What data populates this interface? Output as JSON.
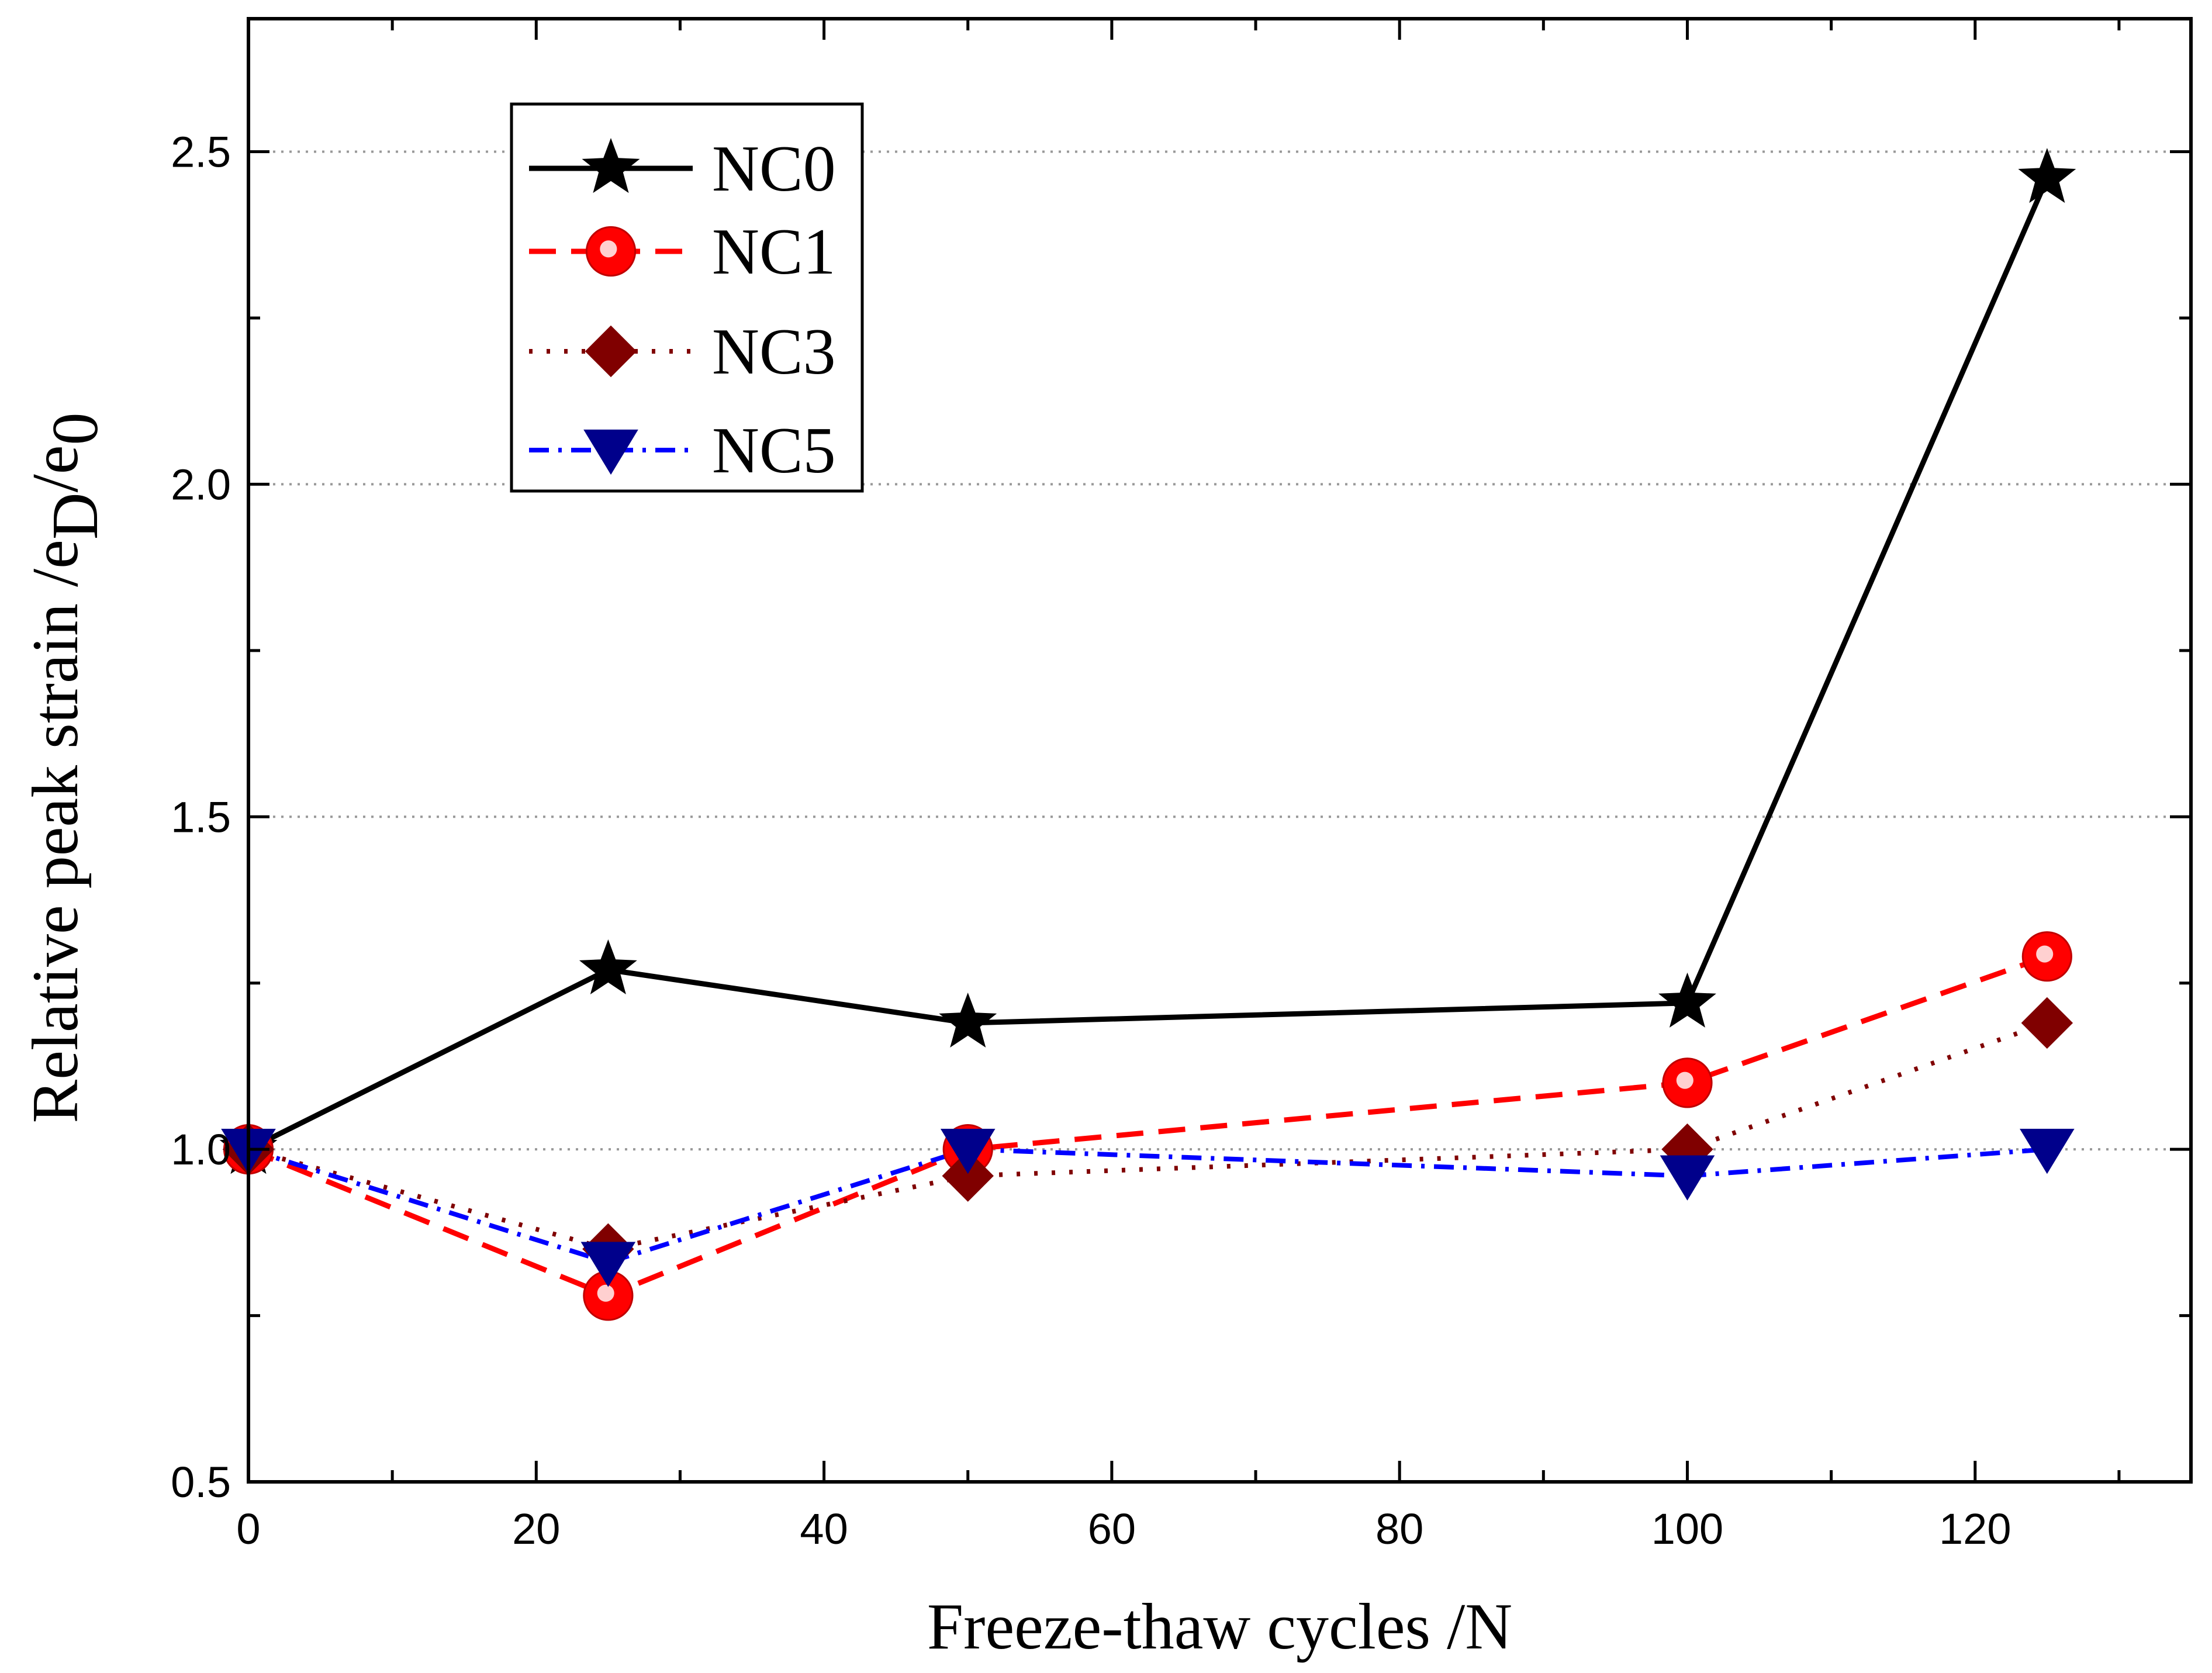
{
  "chart_data": {
    "type": "line",
    "title": "",
    "xlabel": "Freeze-thaw cycles /N",
    "ylabel": {
      "main": "Relative peak strain /e",
      "sub1": "D",
      "mid": "/e",
      "sub2": "0"
    },
    "xlim": [
      0,
      135
    ],
    "ylim": [
      0.5,
      2.7
    ],
    "x_major_ticks": [
      0,
      20,
      40,
      60,
      80,
      100,
      120
    ],
    "x_tick_labels": [
      "0",
      "20",
      "40",
      "60",
      "80",
      "100",
      "120"
    ],
    "x_minor_ticks": [
      10,
      30,
      50,
      70,
      90,
      110,
      130
    ],
    "y_major_ticks": [
      0.5,
      1.0,
      1.5,
      2.0,
      2.5
    ],
    "y_tick_labels": [
      "0.5",
      "1.0",
      "1.5",
      "2.0",
      "2.5"
    ],
    "y_minor_ticks": [
      0.75,
      1.25,
      1.75,
      2.25
    ],
    "grid": {
      "horizontal_dotted_at": [
        1.0,
        1.5,
        2.0,
        2.5
      ]
    },
    "legend_position": "upper-left",
    "x": [
      0,
      25,
      50,
      100,
      125
    ],
    "series": [
      {
        "name": "NC0",
        "values": [
          1.0,
          1.27,
          1.19,
          1.22,
          2.46
        ],
        "color": "#000000",
        "line_style": "solid",
        "marker": "star"
      },
      {
        "name": "NC1",
        "values": [
          1.0,
          0.78,
          1.0,
          1.1,
          1.29
        ],
        "color": "#ff0000",
        "line_style": "dashed",
        "marker": "circle"
      },
      {
        "name": "NC3",
        "values": [
          1.0,
          0.85,
          0.96,
          1.0,
          1.19
        ],
        "color": "#800000",
        "line_style": "dotted",
        "marker": "diamond"
      },
      {
        "name": "NC5",
        "values": [
          1.0,
          0.83,
          1.0,
          0.96,
          1.0
        ],
        "color": "#0000ff",
        "marker_color": "#00008b",
        "line_style": "dash-dot",
        "marker": "triangle-down"
      }
    ]
  }
}
